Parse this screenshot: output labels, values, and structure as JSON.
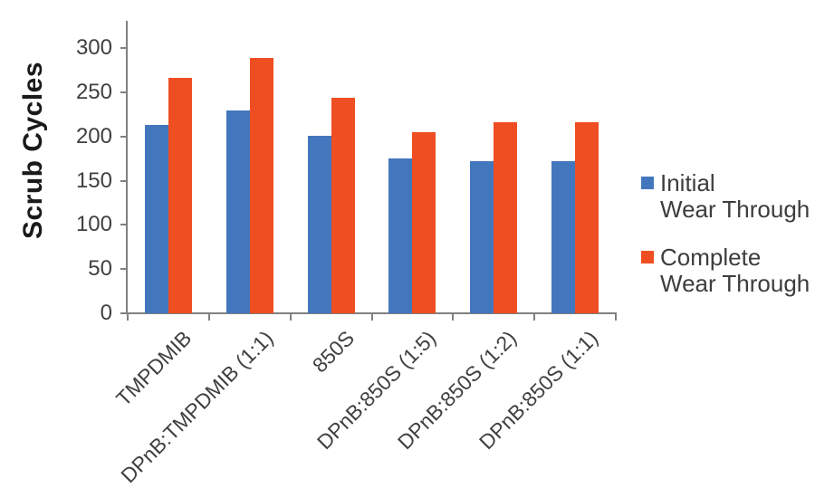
{
  "chart_data": {
    "type": "bar",
    "title": "",
    "xlabel": "",
    "ylabel": "Scrub Cycles",
    "categories": [
      "TMPDMIB",
      "DPnB:TMPDMIB (1:1)",
      "850S",
      "DPnB:850S (1:5)",
      "DPnB:850S (1:2)",
      "DPnB:850S (1:1)"
    ],
    "series": [
      {
        "name": "Initial Wear Through",
        "color": "#4377BD",
        "values": [
          213,
          229,
          201,
          175,
          172,
          172
        ]
      },
      {
        "name": "Complete Wear Through",
        "color": "#EF4E22",
        "values": [
          266,
          289,
          244,
          205,
          216,
          216
        ]
      }
    ],
    "ylim": [
      0,
      330
    ],
    "yticks": [
      0,
      50,
      100,
      150,
      200,
      250,
      300
    ],
    "grid": false,
    "legend_position": "right",
    "axis_color": "#808080",
    "tick_label_color": "#404040",
    "axis_title_color": "#1a1a1a"
  },
  "legend": {
    "items": [
      {
        "line1": "Initial",
        "line2": "Wear Through",
        "color": "#4377BD"
      },
      {
        "line1": "Complete",
        "line2": "Wear Through",
        "color": "#EF4E22"
      }
    ]
  }
}
